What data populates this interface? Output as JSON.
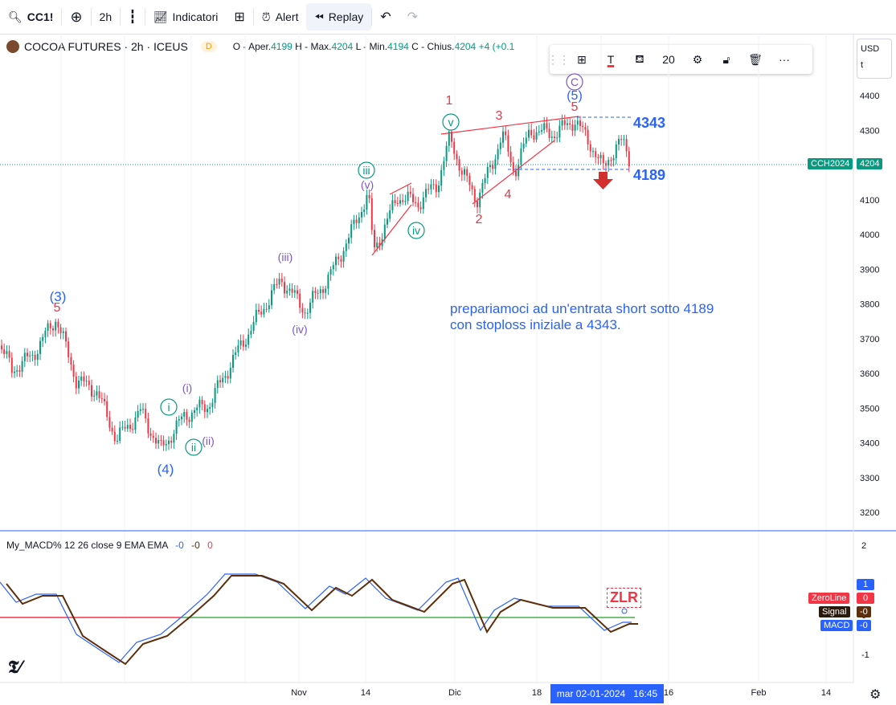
{
  "toolbar": {
    "symbol": "CC1!",
    "interval": "2h",
    "indicators_label": "Indicatori",
    "alert_label": "Alert",
    "replay_label": "Replay"
  },
  "legend": {
    "title": "COCOA FUTURES · 2h · ICEUS",
    "badge": "D",
    "open_label": "O - Aper.",
    "open": "4199",
    "high_label": "H - Max.",
    "high": "4204",
    "low_label": "L - Min.",
    "low": "4194",
    "close_label": "C - Chius.",
    "close": "4204",
    "change": "+4 (+0.1"
  },
  "drawing_toolbar": {
    "font_size": "20",
    "more": "···"
  },
  "currency": {
    "code": "USD",
    "sub": "t"
  },
  "price_axis": [
    "4400",
    "4300",
    "4200",
    "4100",
    "4000",
    "3900",
    "3800",
    "3700",
    "3600",
    "3500",
    "3400",
    "3300",
    "3200"
  ],
  "last_price": {
    "symbol": "CCH2024",
    "value": "4204"
  },
  "wave_labels": {
    "c_circle": "C",
    "five_paren_top": "(5)",
    "five_top": "5",
    "one": "1",
    "two": "2",
    "three": "3",
    "four": "4",
    "v_circle": "v",
    "iii_circle": "iii",
    "v_paren": "(v)",
    "iv_circle": "iv",
    "iii_paren": "(iii)",
    "iv_paren": "(iv)",
    "i_paren": "(i)",
    "ii_paren": "(ii)",
    "i_circle": "i",
    "ii_circle": "ii",
    "three_paren": "(3)",
    "five_left": "5",
    "four_paren": "(4)"
  },
  "levels": {
    "top": "4343",
    "bottom": "4189"
  },
  "annotation": {
    "line1": "prepariamoci ad un'entrata short sotto 4189",
    "line2": "con stoploss iniziale a 4343."
  },
  "macd_panel": {
    "title": "My_MACD% 12 26 close 9 EMA EMA",
    "v1": "-0",
    "v2": "-0",
    "v3": "0",
    "axis": [
      "2",
      "1",
      "0",
      "-1"
    ],
    "zlr": "ZLR",
    "zeroline_label": "ZeroLine",
    "zeroline_value": "0",
    "signal_label": "Signal",
    "signal_value": "-0",
    "macd_label": "MACD",
    "macd_value": "-0",
    "axis_top_badge": "1"
  },
  "time_axis": [
    "Nov",
    "14",
    "Dic",
    "18",
    "16",
    "Feb",
    "14"
  ],
  "cursor_date": {
    "date": "mar 02-01-2024",
    "time": "16:45"
  },
  "colors": {
    "up": "#089981",
    "down": "#f23645",
    "blue": "#2962ff",
    "purple": "#7e57c2",
    "red_label": "#f23645",
    "green_circle": "#089981"
  }
}
